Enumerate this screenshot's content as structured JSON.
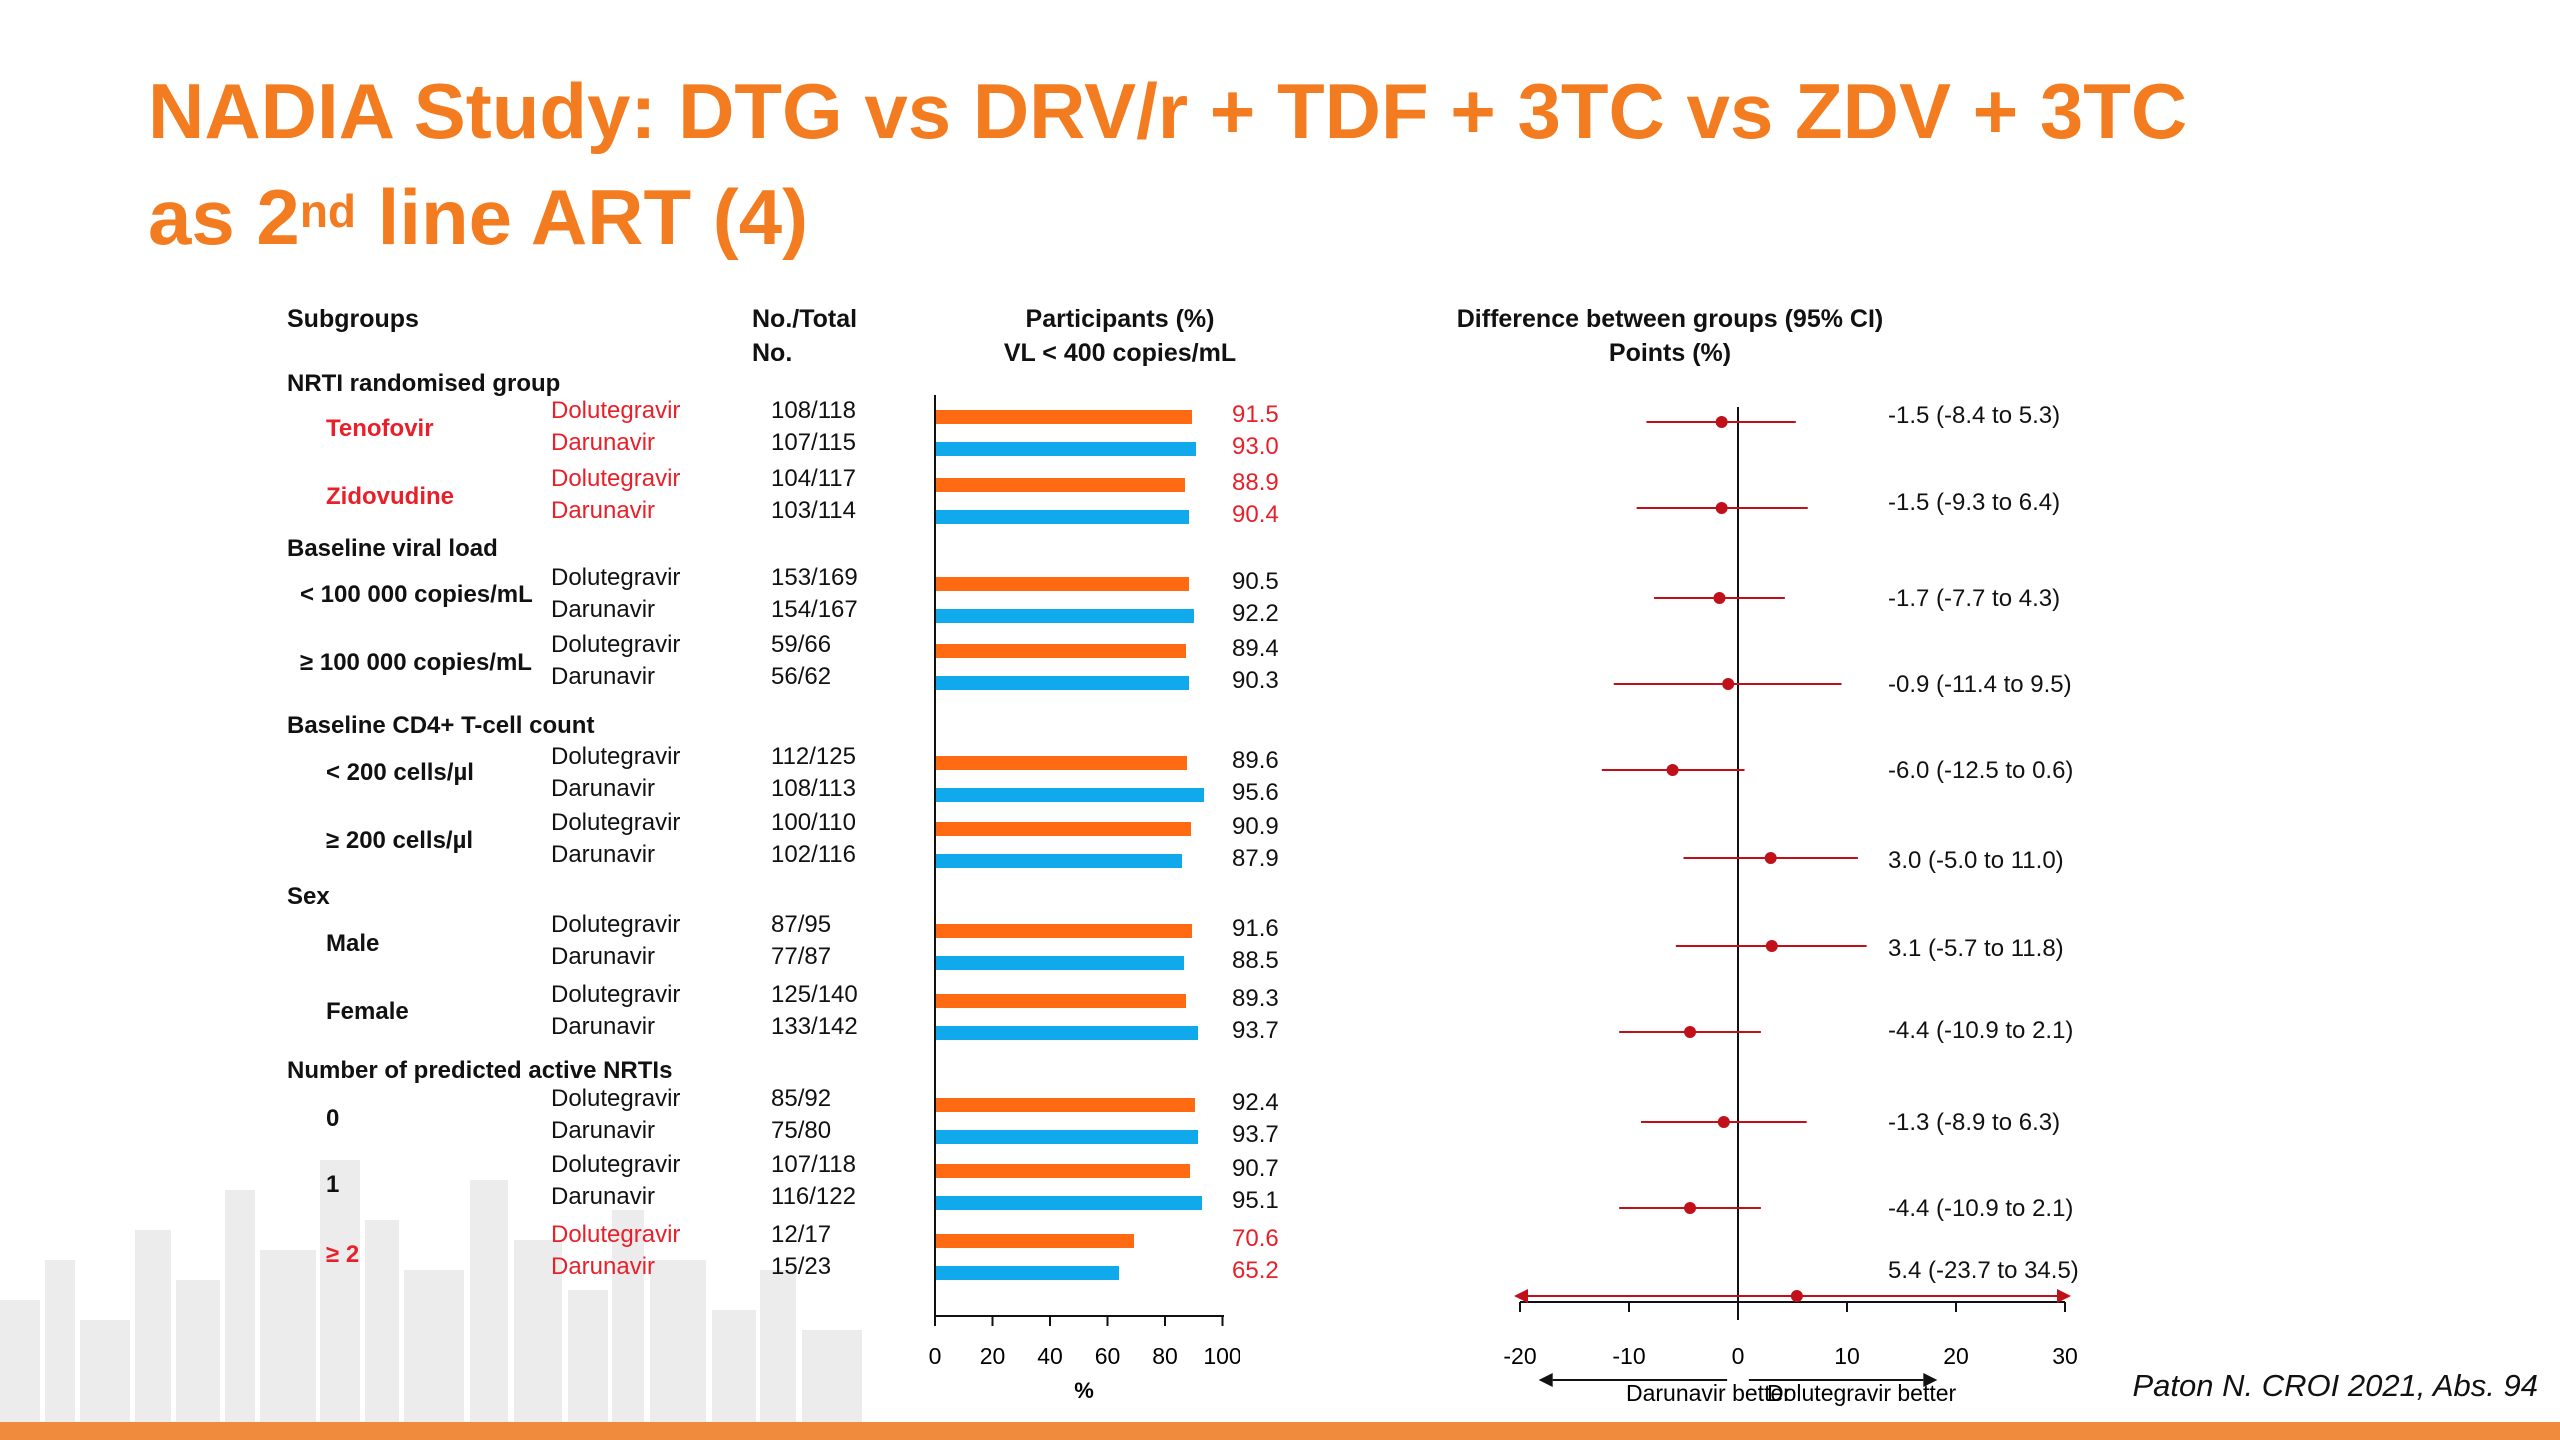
{
  "title": {
    "line1": "NADIA Study: DTG vs DRV/r + TDF + 3TC vs ZDV + 3TC",
    "line2_pre": "as 2",
    "line2_sup": "nd",
    "line2_post": " line ART (4)"
  },
  "headers": {
    "subgroups": "Subgroups",
    "no_total_1": "No./Total",
    "no_total_2": "No.",
    "participants_1": "Participants (%)",
    "participants_2": "VL < 400 copies/mL",
    "difference_1": "Difference between groups (95% CI)",
    "difference_2": "Points (%)"
  },
  "colors": {
    "dolutegravir": "#ff6a13",
    "darunavir": "#10aaec",
    "accent": "#f47c20",
    "ci": "#c0101a",
    "highlight": "#e8202a"
  },
  "sections": [
    "NRTI randomised group",
    "Baseline viral load",
    "Baseline CD4+ T-cell count",
    "Sex",
    "Number of predicted active NRTIs"
  ],
  "subgroups": [
    {
      "label": "Tenofovir",
      "highlight": true
    },
    {
      "label": "Zidovudine",
      "highlight": true
    },
    {
      "label": "< 100 000 copies/mL",
      "highlight": false
    },
    {
      "label": "≥ 100 000 copies/mL",
      "highlight": false
    },
    {
      "label": "< 200 cells/µl",
      "highlight": false
    },
    {
      "label": "≥ 200 cells/µl",
      "highlight": false
    },
    {
      "label": "Male",
      "highlight": false
    },
    {
      "label": "Female",
      "highlight": false
    },
    {
      "label": "0",
      "highlight": false
    },
    {
      "label": "1",
      "highlight": false
    },
    {
      "label": "≥ 2",
      "highlight": true
    }
  ],
  "rows": [
    {
      "arm": "Dolutegravir",
      "n": "108/118",
      "value": 91.5,
      "label": "91.5",
      "red": true
    },
    {
      "arm": "Darunavir",
      "n": "107/115",
      "value": 93.0,
      "label": "93.0",
      "red": true
    },
    {
      "arm": "Dolutegravir",
      "n": "104/117",
      "value": 88.9,
      "label": "88.9",
      "red": true
    },
    {
      "arm": "Darunavir",
      "n": "103/114",
      "value": 90.4,
      "label": "90.4",
      "red": true
    },
    {
      "arm": "Dolutegravir",
      "n": "153/169",
      "value": 90.5,
      "label": "90.5",
      "red": false
    },
    {
      "arm": "Darunavir",
      "n": "154/167",
      "value": 92.2,
      "label": "92.2",
      "red": false
    },
    {
      "arm": "Dolutegravir",
      "n": "59/66",
      "value": 89.4,
      "label": "89.4",
      "red": false
    },
    {
      "arm": "Darunavir",
      "n": "56/62",
      "value": 90.3,
      "label": "90.3",
      "red": false
    },
    {
      "arm": "Dolutegravir",
      "n": "112/125",
      "value": 89.6,
      "label": "89.6",
      "red": false
    },
    {
      "arm": "Darunavir",
      "n": "108/113",
      "value": 95.6,
      "label": "95.6",
      "red": false
    },
    {
      "arm": "Dolutegravir",
      "n": "100/110",
      "value": 90.9,
      "label": "90.9",
      "red": false
    },
    {
      "arm": "Darunavir",
      "n": "102/116",
      "value": 87.9,
      "label": "87.9",
      "red": false
    },
    {
      "arm": "Dolutegravir",
      "n": "87/95",
      "value": 91.6,
      "label": "91.6",
      "red": false
    },
    {
      "arm": "Darunavir",
      "n": "77/87",
      "value": 88.5,
      "label": "88.5",
      "red": false
    },
    {
      "arm": "Dolutegravir",
      "n": "125/140",
      "value": 89.3,
      "label": "89.3",
      "red": false
    },
    {
      "arm": "Darunavir",
      "n": "133/142",
      "value": 93.7,
      "label": "93.7",
      "red": false
    },
    {
      "arm": "Dolutegravir",
      "n": "85/92",
      "value": 92.4,
      "label": "92.4",
      "red": false
    },
    {
      "arm": "Darunavir",
      "n": "75/80",
      "value": 93.7,
      "label": "93.7",
      "red": false
    },
    {
      "arm": "Dolutegravir",
      "n": "107/118",
      "value": 90.7,
      "label": "90.7",
      "red": false
    },
    {
      "arm": "Darunavir",
      "n": "116/122",
      "value": 95.1,
      "label": "95.1",
      "red": false
    },
    {
      "arm": "Dolutegravir",
      "n": "12/17",
      "value": 70.6,
      "label": "70.6",
      "red": true
    },
    {
      "arm": "Darunavir",
      "n": "15/23",
      "value": 65.2,
      "label": "65.2",
      "red": true
    }
  ],
  "chart_data": [
    {
      "type": "bar",
      "orientation": "horizontal",
      "xlabel": "%",
      "xlim": [
        0,
        100
      ],
      "xticks": [
        "0",
        "20",
        "40",
        "60",
        "80",
        "100"
      ],
      "series": [
        {
          "name": "Dolutegravir",
          "values": [
            91.5,
            88.9,
            90.5,
            89.4,
            89.6,
            90.9,
            91.6,
            89.3,
            92.4,
            90.7,
            70.6
          ]
        },
        {
          "name": "Darunavir",
          "values": [
            93.0,
            90.4,
            92.2,
            90.3,
            95.6,
            87.9,
            88.5,
            93.7,
            93.7,
            95.1,
            65.2
          ]
        }
      ],
      "categories": [
        "Tenofovir",
        "Zidovudine",
        "< 100 000 copies/mL",
        "≥ 100 000 copies/mL",
        "< 200 cells/µl",
        "≥ 200 cells/µl",
        "Male",
        "Female",
        "0",
        "1",
        "≥ 2"
      ]
    },
    {
      "type": "forest",
      "xlim": [
        -20,
        30
      ],
      "xticks": [
        "-20",
        "-10",
        "0",
        "10",
        "20",
        "30"
      ],
      "left_arrow_label": "Darunavir better",
      "right_arrow_label": "Dolutegravir better",
      "estimates": [
        {
          "est": -1.5,
          "lo": -8.4,
          "hi": 5.3,
          "label": "-1.5 (-8.4 to 5.3)"
        },
        {
          "est": -1.5,
          "lo": -9.3,
          "hi": 6.4,
          "label": "-1.5 (-9.3 to 6.4)"
        },
        {
          "est": -1.7,
          "lo": -7.7,
          "hi": 4.3,
          "label": "-1.7 (-7.7 to 4.3)"
        },
        {
          "est": -0.9,
          "lo": -11.4,
          "hi": 9.5,
          "label": "-0.9 (-11.4 to 9.5)"
        },
        {
          "est": -6.0,
          "lo": -12.5,
          "hi": 0.6,
          "label": "-6.0 (-12.5 to 0.6)"
        },
        {
          "est": 3.0,
          "lo": -5.0,
          "hi": 11.0,
          "label": "3.0 (-5.0 to 11.0)"
        },
        {
          "est": 3.1,
          "lo": -5.7,
          "hi": 11.8,
          "label": "3.1 (-5.7 to 11.8)"
        },
        {
          "est": -4.4,
          "lo": -10.9,
          "hi": 2.1,
          "label": "-4.4 (-10.9 to 2.1)"
        },
        {
          "est": -1.3,
          "lo": -8.9,
          "hi": 6.3,
          "label": "-1.3 (-8.9 to 6.3)"
        },
        {
          "est": -4.4,
          "lo": -10.9,
          "hi": 2.1,
          "label": "-4.4 (-10.9 to 2.1)"
        },
        {
          "est": 5.4,
          "lo": -23.7,
          "hi": 34.5,
          "label": "5.4 (-23.7 to 34.5)"
        }
      ]
    }
  ],
  "citation": "Paton N. CROI 2021, Abs. 94"
}
